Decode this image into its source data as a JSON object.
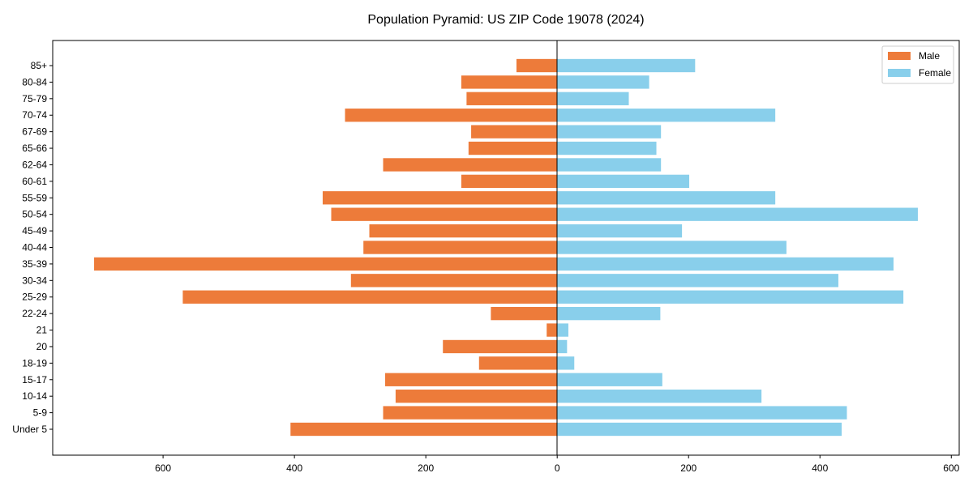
{
  "chart_data": {
    "type": "bar",
    "orientation": "horizontal",
    "title": "Population Pyramid: US ZIP Code 19078 (2024)",
    "xlabel": "",
    "ylabel": "",
    "xlim": [
      -768,
      612
    ],
    "xticks": [
      -600,
      -400,
      -200,
      0,
      200,
      400,
      600
    ],
    "xtick_labels": [
      "600",
      "400",
      "200",
      "0",
      "200",
      "400",
      "600"
    ],
    "legend_position": "top-right",
    "grid": false,
    "categories": [
      "85+",
      "80-84",
      "75-79",
      "70-74",
      "67-69",
      "65-66",
      "62-64",
      "60-61",
      "55-59",
      "50-54",
      "45-49",
      "40-44",
      "35-39",
      "30-34",
      "25-29",
      "22-24",
      "21",
      "20",
      "18-19",
      "15-17",
      "10-14",
      "5-9",
      "Under 5"
    ],
    "series": [
      {
        "name": "Male",
        "color": "#ED7B3A",
        "values": [
          62,
          146,
          138,
          323,
          131,
          135,
          265,
          146,
          357,
          344,
          286,
          295,
          705,
          314,
          570,
          101,
          16,
          174,
          119,
          262,
          246,
          265,
          406
        ]
      },
      {
        "name": "Female",
        "color": "#89CFEB",
        "values": [
          210,
          140,
          109,
          332,
          158,
          151,
          158,
          201,
          332,
          549,
          190,
          349,
          512,
          428,
          527,
          157,
          17,
          15,
          26,
          160,
          311,
          441,
          433
        ]
      }
    ]
  }
}
